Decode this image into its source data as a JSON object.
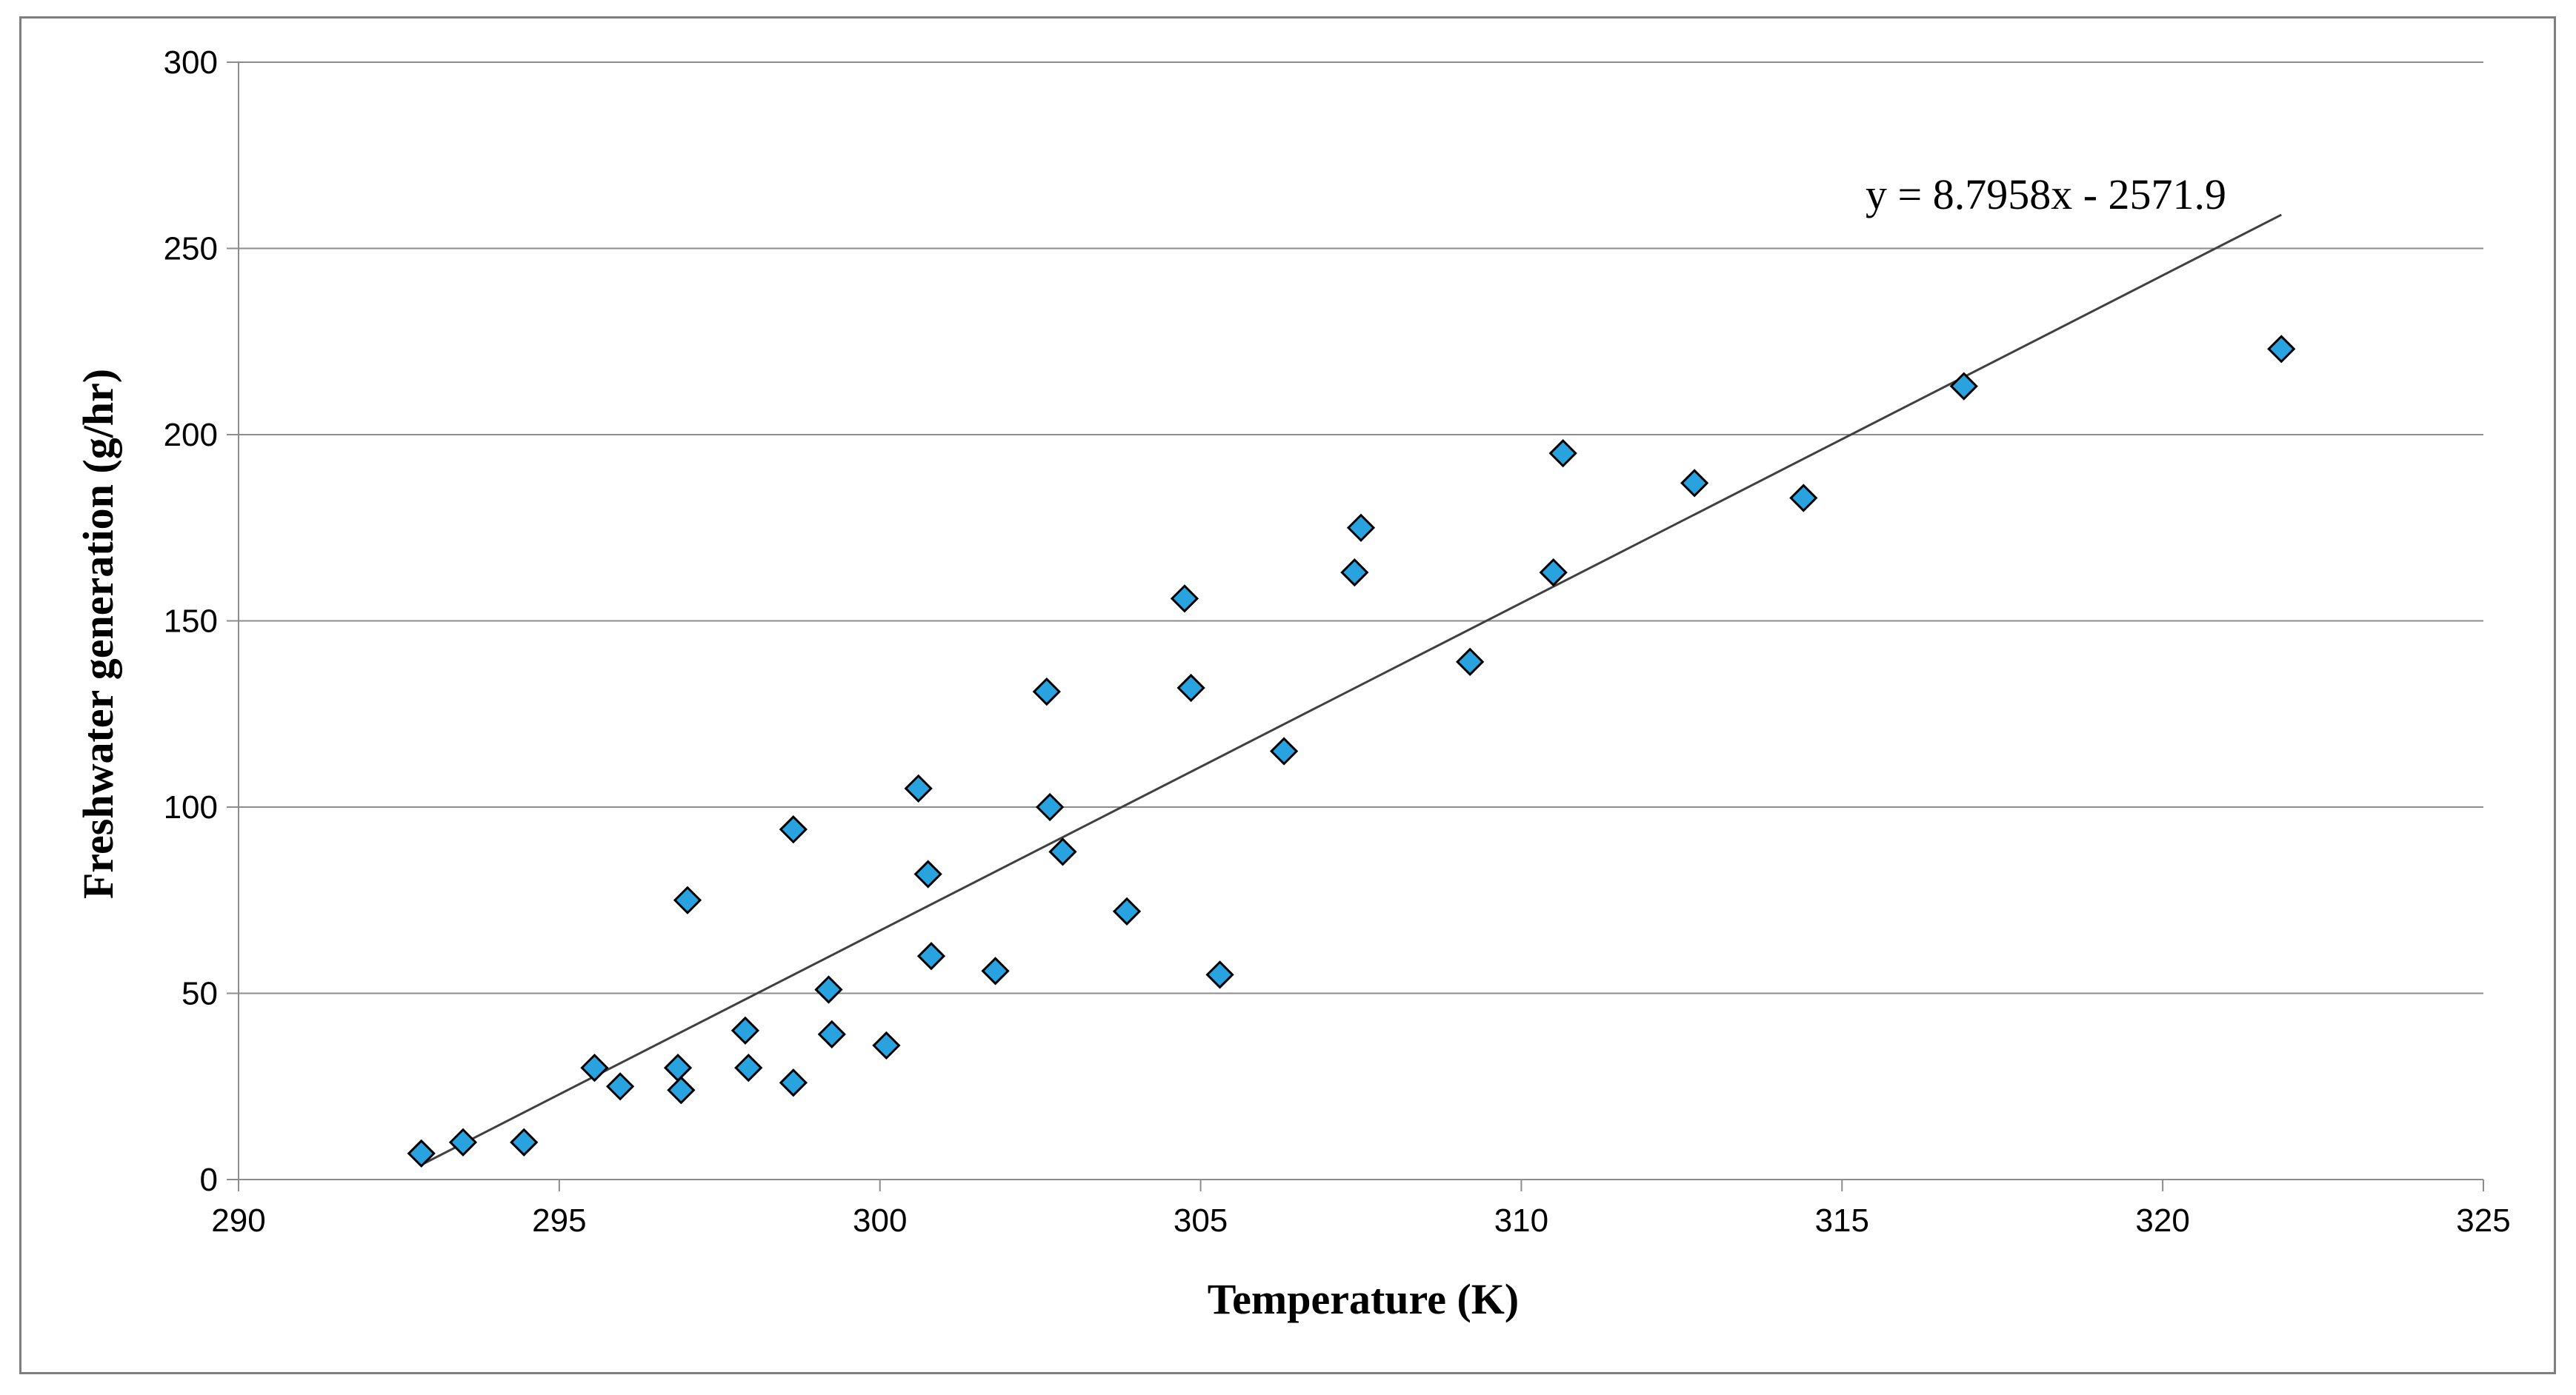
{
  "chart_data": {
    "type": "scatter",
    "title": "",
    "xlabel": "Temperature (K)",
    "ylabel": "Freshwater generation (g/hr)",
    "xlim": [
      290,
      325
    ],
    "ylim": [
      0,
      300
    ],
    "xticks": [
      290,
      295,
      300,
      305,
      310,
      315,
      320,
      325
    ],
    "yticks": [
      0,
      50,
      100,
      150,
      200,
      250,
      300
    ],
    "grid": "horizontal",
    "legend": "none",
    "marker": "diamond",
    "marker_color": "#29a3e0",
    "marker_edge_color": "#000000",
    "series": [
      {
        "name": "Freshwater generation",
        "points": [
          [
            292.85,
            7
          ],
          [
            293.5,
            10
          ],
          [
            294.45,
            10
          ],
          [
            295.55,
            30
          ],
          [
            295.95,
            25
          ],
          [
            296.85,
            30
          ],
          [
            296.9,
            24
          ],
          [
            297.0,
            75
          ],
          [
            297.9,
            40
          ],
          [
            297.95,
            30
          ],
          [
            298.65,
            94
          ],
          [
            298.65,
            26
          ],
          [
            299.2,
            51
          ],
          [
            299.25,
            39
          ],
          [
            300.1,
            36
          ],
          [
            300.6,
            105
          ],
          [
            300.75,
            82
          ],
          [
            300.8,
            60
          ],
          [
            301.8,
            56
          ],
          [
            302.6,
            131
          ],
          [
            302.65,
            100
          ],
          [
            302.85,
            88
          ],
          [
            303.85,
            72
          ],
          [
            304.75,
            156
          ],
          [
            304.85,
            132
          ],
          [
            305.3,
            55
          ],
          [
            306.3,
            115
          ],
          [
            307.4,
            163
          ],
          [
            307.5,
            175
          ],
          [
            309.2,
            139
          ],
          [
            310.5,
            163
          ],
          [
            310.65,
            195
          ],
          [
            312.7,
            187
          ],
          [
            314.4,
            183
          ],
          [
            316.9,
            213
          ],
          [
            321.85,
            223
          ]
        ]
      }
    ],
    "trendline": {
      "slope": 8.7958,
      "intercept": -2571.9,
      "x_start": 292.85,
      "x_end": 321.85,
      "color": "#404040",
      "label": "y = 8.7958x - 2571.9"
    }
  }
}
